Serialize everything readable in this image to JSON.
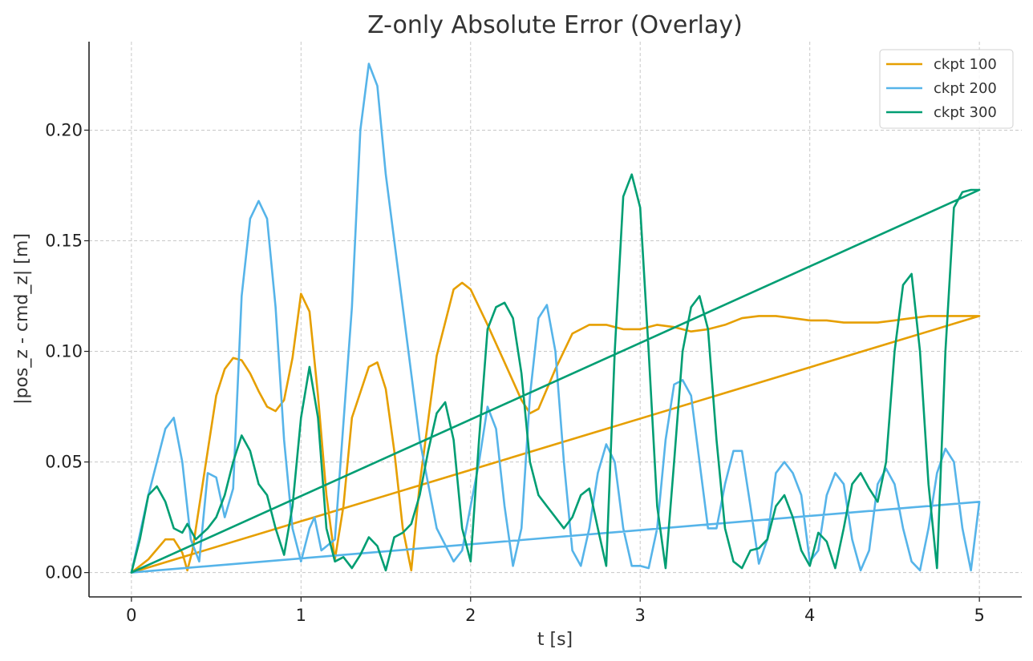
{
  "chart_data": {
    "type": "line",
    "title": "Z-only Absolute Error (Overlay)",
    "xlabel": "t [s]",
    "ylabel": "|pos_z - cmd_z| [m]",
    "xlim": [
      -0.25,
      5.25
    ],
    "ylim": [
      -0.011,
      0.24
    ],
    "xticks": [
      0,
      1,
      2,
      3,
      4,
      5
    ],
    "xtick_labels": [
      "0",
      "1",
      "2",
      "3",
      "4",
      "5"
    ],
    "yticks": [
      0.0,
      0.05,
      0.1,
      0.15,
      0.2
    ],
    "ytick_labels": [
      "0.00",
      "0.05",
      "0.10",
      "0.15",
      "0.20"
    ],
    "grid": true,
    "legend_position": "top-right",
    "series": [
      {
        "name": "ckpt 100",
        "color": "#E69F00",
        "x": [
          0,
          0.1,
          0.2,
          0.25,
          0.3,
          0.33,
          0.36,
          0.45,
          0.5,
          0.55,
          0.6,
          0.65,
          0.7,
          0.75,
          0.8,
          0.85,
          0.9,
          0.95,
          1.0,
          1.05,
          1.1,
          1.15,
          1.2,
          1.25,
          1.3,
          1.4,
          1.45,
          1.5,
          1.55,
          1.6,
          1.65,
          1.7,
          1.8,
          1.9,
          1.95,
          2.0,
          2.1,
          2.2,
          2.3,
          2.35,
          2.4,
          2.5,
          2.6,
          2.7,
          2.8,
          2.9,
          3.0,
          3.1,
          3.2,
          3.3,
          3.4,
          3.5,
          3.6,
          3.7,
          3.8,
          3.9,
          4.0,
          4.1,
          4.2,
          4.3,
          4.4,
          4.5,
          4.6,
          4.7,
          4.8,
          4.9,
          5.0,
          0
        ],
        "y": [
          0,
          0.006,
          0.015,
          0.015,
          0.009,
          0.001,
          0.01,
          0.055,
          0.08,
          0.092,
          0.097,
          0.096,
          0.09,
          0.082,
          0.075,
          0.073,
          0.078,
          0.097,
          0.126,
          0.118,
          0.08,
          0.035,
          0.006,
          0.03,
          0.07,
          0.093,
          0.095,
          0.083,
          0.055,
          0.02,
          0.001,
          0.04,
          0.098,
          0.128,
          0.131,
          0.128,
          0.112,
          0.095,
          0.078,
          0.072,
          0.074,
          0.092,
          0.108,
          0.112,
          0.112,
          0.11,
          0.11,
          0.112,
          0.111,
          0.109,
          0.11,
          0.112,
          0.115,
          0.116,
          0.116,
          0.115,
          0.114,
          0.114,
          0.113,
          0.113,
          0.113,
          0.114,
          0.115,
          0.116,
          0.116,
          0.116,
          0.116,
          0
        ]
      },
      {
        "name": "ckpt 200",
        "color": "#56B4E9",
        "x": [
          0,
          0.1,
          0.2,
          0.25,
          0.3,
          0.35,
          0.4,
          0.45,
          0.5,
          0.55,
          0.6,
          0.65,
          0.7,
          0.75,
          0.8,
          0.85,
          0.9,
          0.95,
          1.0,
          1.05,
          1.08,
          1.12,
          1.2,
          1.3,
          1.35,
          1.4,
          1.45,
          1.5,
          1.6,
          1.7,
          1.8,
          1.9,
          1.95,
          2.0,
          2.05,
          2.1,
          2.15,
          2.2,
          2.25,
          2.3,
          2.35,
          2.4,
          2.45,
          2.5,
          2.55,
          2.6,
          2.65,
          2.7,
          2.75,
          2.8,
          2.85,
          2.9,
          2.95,
          3.0,
          3.05,
          3.1,
          3.15,
          3.2,
          3.25,
          3.3,
          3.35,
          3.4,
          3.45,
          3.5,
          3.55,
          3.6,
          3.65,
          3.7,
          3.75,
          3.8,
          3.85,
          3.9,
          3.95,
          4.0,
          4.05,
          4.1,
          4.15,
          4.2,
          4.25,
          4.3,
          4.35,
          4.4,
          4.45,
          4.5,
          4.55,
          4.6,
          4.65,
          4.7,
          4.75,
          4.8,
          4.85,
          4.9,
          4.95,
          5.0,
          0
        ],
        "y": [
          0,
          0.035,
          0.065,
          0.07,
          0.05,
          0.015,
          0.005,
          0.045,
          0.043,
          0.025,
          0.038,
          0.125,
          0.16,
          0.168,
          0.16,
          0.12,
          0.06,
          0.02,
          0.005,
          0.02,
          0.025,
          0.01,
          0.015,
          0.12,
          0.2,
          0.23,
          0.22,
          0.18,
          0.12,
          0.06,
          0.02,
          0.005,
          0.01,
          0.03,
          0.05,
          0.075,
          0.065,
          0.03,
          0.003,
          0.02,
          0.08,
          0.115,
          0.121,
          0.1,
          0.05,
          0.01,
          0.003,
          0.02,
          0.045,
          0.058,
          0.05,
          0.02,
          0.003,
          0.003,
          0.002,
          0.02,
          0.06,
          0.085,
          0.087,
          0.08,
          0.05,
          0.02,
          0.02,
          0.04,
          0.055,
          0.055,
          0.03,
          0.004,
          0.015,
          0.045,
          0.05,
          0.045,
          0.035,
          0.005,
          0.01,
          0.035,
          0.045,
          0.04,
          0.015,
          0.001,
          0.01,
          0.04,
          0.047,
          0.04,
          0.02,
          0.005,
          0.001,
          0.02,
          0.045,
          0.056,
          0.05,
          0.02,
          0.001,
          0.032,
          0
        ]
      },
      {
        "name": "ckpt 300",
        "color": "#009E73",
        "x": [
          0,
          0.05,
          0.1,
          0.15,
          0.2,
          0.25,
          0.3,
          0.33,
          0.38,
          0.45,
          0.5,
          0.55,
          0.6,
          0.65,
          0.7,
          0.75,
          0.8,
          0.85,
          0.9,
          0.95,
          1.0,
          1.05,
          1.1,
          1.15,
          1.2,
          1.25,
          1.3,
          1.35,
          1.4,
          1.45,
          1.5,
          1.55,
          1.6,
          1.65,
          1.7,
          1.75,
          1.8,
          1.85,
          1.9,
          1.95,
          2.0,
          2.05,
          2.1,
          2.15,
          2.2,
          2.25,
          2.3,
          2.35,
          2.4,
          2.45,
          2.5,
          2.55,
          2.6,
          2.65,
          2.7,
          2.75,
          2.8,
          2.85,
          2.9,
          2.95,
          3.0,
          3.05,
          3.1,
          3.15,
          3.2,
          3.25,
          3.3,
          3.35,
          3.4,
          3.45,
          3.5,
          3.55,
          3.6,
          3.65,
          3.7,
          3.75,
          3.8,
          3.85,
          3.9,
          3.95,
          4.0,
          4.05,
          4.1,
          4.15,
          4.2,
          4.25,
          4.3,
          4.35,
          4.4,
          4.45,
          4.5,
          4.55,
          4.6,
          4.65,
          4.7,
          4.75,
          4.8,
          4.85,
          4.9,
          4.95,
          5.0,
          0
        ],
        "y": [
          0,
          0.015,
          0.035,
          0.039,
          0.032,
          0.02,
          0.018,
          0.022,
          0.015,
          0.02,
          0.025,
          0.035,
          0.05,
          0.062,
          0.055,
          0.04,
          0.035,
          0.02,
          0.008,
          0.03,
          0.07,
          0.093,
          0.07,
          0.02,
          0.005,
          0.007,
          0.002,
          0.008,
          0.016,
          0.012,
          0.001,
          0.016,
          0.018,
          0.022,
          0.035,
          0.055,
          0.072,
          0.077,
          0.06,
          0.02,
          0.005,
          0.06,
          0.11,
          0.12,
          0.122,
          0.115,
          0.09,
          0.05,
          0.035,
          0.03,
          0.025,
          0.02,
          0.025,
          0.035,
          0.038,
          0.02,
          0.003,
          0.1,
          0.17,
          0.18,
          0.165,
          0.1,
          0.03,
          0.002,
          0.05,
          0.1,
          0.12,
          0.125,
          0.11,
          0.06,
          0.02,
          0.005,
          0.002,
          0.01,
          0.011,
          0.015,
          0.03,
          0.035,
          0.025,
          0.01,
          0.003,
          0.018,
          0.014,
          0.002,
          0.02,
          0.04,
          0.045,
          0.038,
          0.032,
          0.05,
          0.1,
          0.13,
          0.135,
          0.1,
          0.04,
          0.002,
          0.1,
          0.165,
          0.172,
          0.173,
          0.173,
          0
        ]
      }
    ]
  }
}
